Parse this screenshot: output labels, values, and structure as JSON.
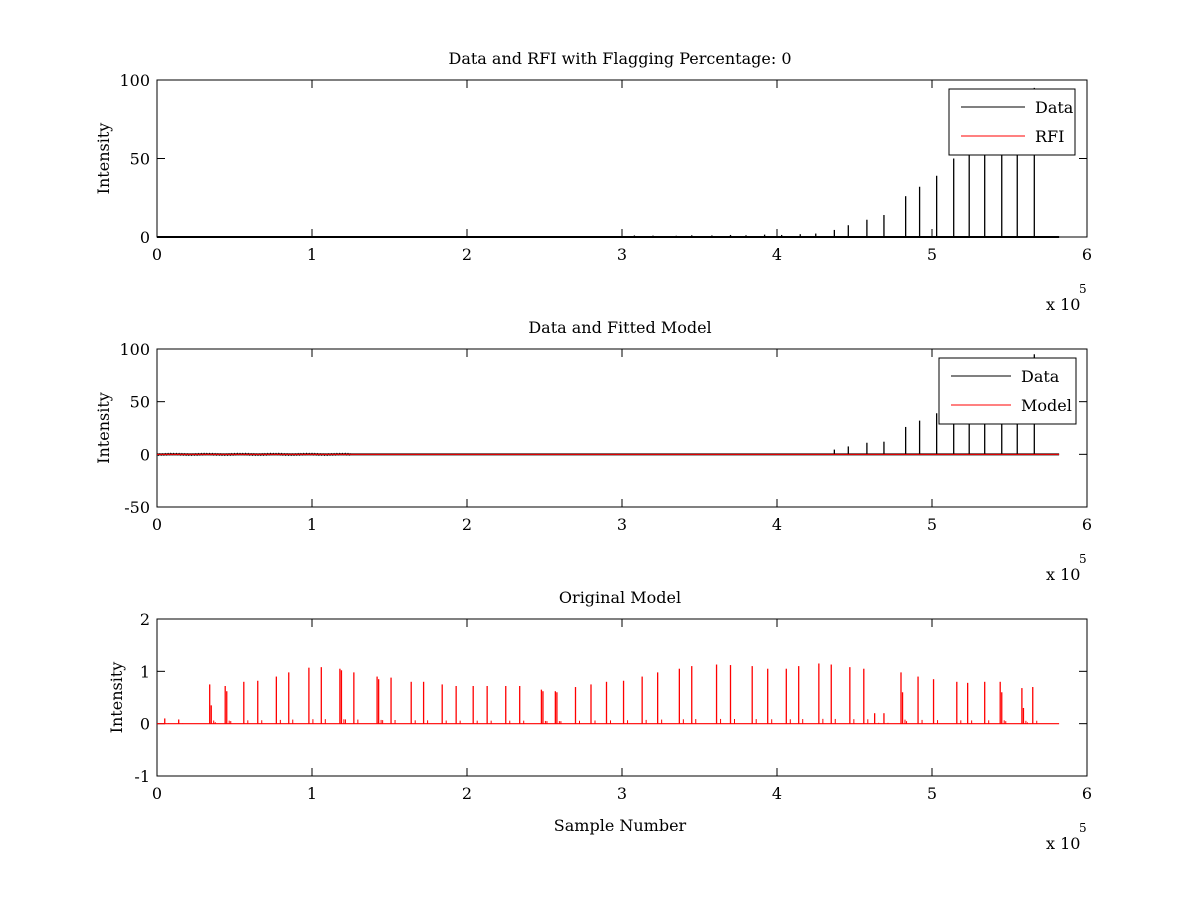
{
  "chart_data": [
    {
      "type": "line",
      "title": "Data and RFI with Flagging Percentage: 0",
      "xlabel": "",
      "ylabel": "Intensity",
      "xlim": [
        0,
        6
      ],
      "ylim": [
        0,
        100
      ],
      "x_ticks": [
        "0",
        "1",
        "2",
        "3",
        "4",
        "5",
        "6"
      ],
      "y_ticks": [
        "0",
        "50",
        "100"
      ],
      "x_multiplier": {
        "base": "x 10",
        "exponent": "5"
      },
      "grid": false,
      "legend": {
        "placement": "top-right",
        "entries": [
          {
            "label": "Data",
            "color": "#000000"
          },
          {
            "label": "RFI",
            "color": "#ff0000"
          }
        ]
      },
      "data_line_end": 5.82,
      "data_spikes": {
        "x": [
          0.5,
          0.8,
          1.0,
          1.25,
          1.5,
          1.8,
          2.1,
          2.4,
          2.7,
          3.0,
          3.08,
          3.2,
          3.35,
          3.45,
          3.58,
          3.7,
          3.8,
          3.92,
          4.03,
          4.15,
          4.25,
          4.37,
          4.46,
          4.58,
          4.69,
          4.83,
          4.92,
          5.03,
          5.14,
          5.24,
          5.34,
          5.45,
          5.55,
          5.66
        ],
        "y": [
          0.3,
          0.3,
          0.4,
          0.3,
          0.4,
          0.3,
          0.4,
          0.3,
          0.5,
          0.6,
          1.0,
          0.9,
          0.8,
          1.1,
          1.0,
          1.3,
          1.1,
          1.5,
          1.3,
          1.8,
          2.2,
          4.5,
          7.5,
          11,
          14,
          26,
          32,
          39,
          50,
          57,
          68,
          75,
          86,
          95
        ]
      }
    },
    {
      "type": "line",
      "title": "Data and Fitted Model",
      "xlabel": "",
      "ylabel": "Intensity",
      "xlim": [
        0,
        6
      ],
      "ylim": [
        -50,
        100
      ],
      "x_ticks": [
        "0",
        "1",
        "2",
        "3",
        "4",
        "5",
        "6"
      ],
      "y_ticks": [
        "-50",
        "0",
        "50",
        "100"
      ],
      "x_multiplier": {
        "base": "x 10",
        "exponent": "5"
      },
      "grid": false,
      "legend": {
        "placement": "top-right",
        "entries": [
          {
            "label": "Data",
            "color": "#000000"
          },
          {
            "label": "Model",
            "color": "#ff0000"
          }
        ]
      },
      "data_line_end": 5.82,
      "data_spikes": {
        "x": [
          4.37,
          4.46,
          4.58,
          4.69,
          4.83,
          4.92,
          5.03,
          5.14,
          5.24,
          5.34,
          5.45,
          5.55,
          5.66
        ],
        "y": [
          4.5,
          7.5,
          11,
          12,
          26,
          32,
          39,
          50,
          57,
          68,
          75,
          86,
          95
        ]
      },
      "model_line": {
        "x_start": 0.0,
        "x_end": 5.82,
        "y": 0
      },
      "residual_region": {
        "x_start": 0.0,
        "x_end": 1.25,
        "amplitude": 1.0
      }
    },
    {
      "type": "line",
      "title": "Original Model",
      "xlabel": "Sample Number",
      "ylabel": "Intensity",
      "xlim": [
        0,
        6
      ],
      "ylim": [
        -1,
        2
      ],
      "x_ticks": [
        "0",
        "1",
        "2",
        "3",
        "4",
        "5",
        "6"
      ],
      "y_ticks": [
        "-1",
        "0",
        "1",
        "2"
      ],
      "x_multiplier": {
        "base": "x 10",
        "exponent": "5"
      },
      "grid": false,
      "legend": null,
      "model_line_end": 5.82,
      "model_spikes": {
        "x": [
          0.05,
          0.14,
          0.34,
          0.35,
          0.44,
          0.45,
          0.56,
          0.65,
          0.77,
          0.85,
          0.98,
          1.06,
          1.18,
          1.19,
          1.27,
          1.42,
          1.43,
          1.51,
          1.64,
          1.72,
          1.84,
          1.93,
          2.04,
          2.13,
          2.25,
          2.34,
          2.48,
          2.49,
          2.57,
          2.58,
          2.7,
          2.8,
          2.9,
          3.01,
          3.13,
          3.23,
          3.37,
          3.45,
          3.61,
          3.7,
          3.84,
          3.94,
          4.06,
          4.14,
          4.27,
          4.35,
          4.47,
          4.56,
          4.63,
          4.69,
          4.8,
          4.81,
          4.91,
          5.01,
          5.16,
          5.23,
          5.34,
          5.44,
          5.45,
          5.58,
          5.59,
          5.65
        ],
        "y": [
          0.1,
          0.08,
          0.75,
          0.35,
          0.72,
          0.62,
          0.8,
          0.82,
          0.9,
          0.98,
          1.07,
          1.08,
          1.05,
          1.02,
          0.98,
          0.9,
          0.85,
          0.88,
          0.8,
          0.8,
          0.75,
          0.72,
          0.72,
          0.72,
          0.72,
          0.72,
          0.65,
          0.62,
          0.62,
          0.6,
          0.7,
          0.75,
          0.8,
          0.82,
          0.9,
          0.98,
          1.05,
          1.1,
          1.13,
          1.12,
          1.1,
          1.05,
          1.05,
          1.1,
          1.15,
          1.13,
          1.08,
          1.05,
          0.2,
          0.2,
          0.98,
          0.6,
          0.9,
          0.85,
          0.8,
          0.78,
          0.8,
          0.8,
          0.6,
          0.68,
          0.3,
          0.7
        ]
      }
    }
  ]
}
